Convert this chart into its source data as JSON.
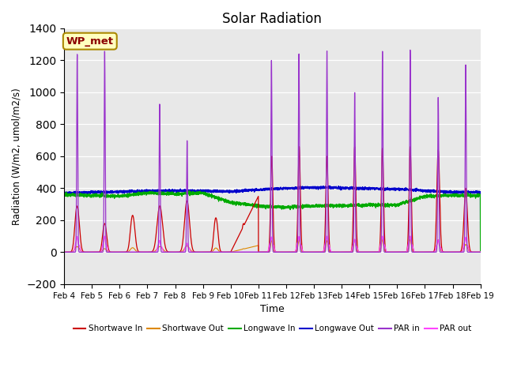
{
  "title": "Solar Radiation",
  "ylabel": "Radiation (W/m2, umol/m2/s)",
  "xlabel": "Time",
  "ylim": [
    -200,
    1400
  ],
  "yticks": [
    -200,
    0,
    200,
    400,
    600,
    800,
    1000,
    1200,
    1400
  ],
  "xtick_labels": [
    "Feb 4",
    "Feb 5",
    "Feb 6",
    "Feb 7",
    "Feb 8",
    "Feb 9",
    "Feb 10",
    "Feb 11",
    "Feb 12",
    "Feb 13",
    "Feb 14",
    "Feb 15",
    "Feb 16",
    "Feb 17",
    "Feb 18",
    "Feb 19"
  ],
  "background_color": "#e8e8e8",
  "figure_color": "#ffffff",
  "legend_entries": [
    "Shortwave In",
    "Shortwave Out",
    "Longwave In",
    "Longwave Out",
    "PAR in",
    "PAR out"
  ],
  "legend_colors": [
    "#cc0000",
    "#dd8800",
    "#00aa00",
    "#0000cc",
    "#9933cc",
    "#ff44ff"
  ],
  "annotation_text": "WP_met",
  "annotation_color": "#8b0000",
  "annotation_bg": "#ffffc0",
  "annotation_border": "#aa8800"
}
